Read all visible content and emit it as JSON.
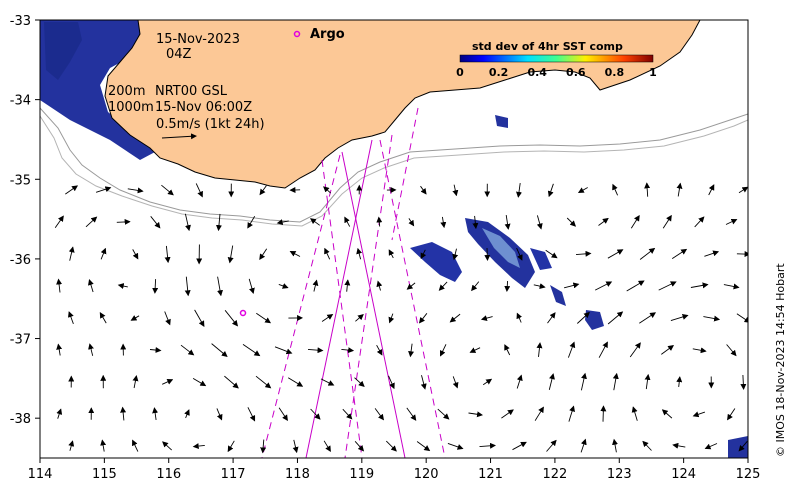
{
  "map": {
    "date_label": "15-Nov-2023",
    "time_label": "04Z",
    "depth_line_1": "200m",
    "depth_line_2": "1000m",
    "product_label": "NRT00 GSL",
    "product_time": "15-Nov 06:00Z",
    "scale_label": "0.5m/s (1kt 24h)",
    "argo_label": "Argo",
    "credit": "© IMOS 18-Nov-2023 14:54 Hobart",
    "colors": {
      "land": "#FCC896",
      "sst_high": "#1E2E9E",
      "argo": "#E000E0",
      "swath": "#C800C8",
      "isobath": "#9A9A9A"
    }
  },
  "chart_data": {
    "type": "map",
    "xlim": [
      114,
      125
    ],
    "ylim": [
      -38.5,
      -33
    ],
    "x_ticks": [
      "114",
      "115",
      "116",
      "117",
      "118",
      "119",
      "120",
      "121",
      "122",
      "123",
      "124",
      "125"
    ],
    "y_ticks": [
      "-33",
      "-34",
      "-35",
      "-36",
      "-37",
      "-38"
    ],
    "x_tick_values": [
      114,
      115,
      116,
      117,
      118,
      119,
      120,
      121,
      122,
      123,
      124,
      125
    ],
    "y_tick_values": [
      -33,
      -34,
      -35,
      -36,
      -37,
      -38
    ],
    "colorbar": {
      "title": "std dev of 4hr SST comp",
      "ticks": [
        "0",
        "0.2",
        "0.4",
        "0.6",
        "0.8",
        "1"
      ],
      "range": [
        0,
        1
      ]
    },
    "argo_float": {
      "lon": 117.15,
      "lat": -36.68
    },
    "legend_argo_marker": {
      "lon": 118.05,
      "lat": -33.19
    }
  }
}
